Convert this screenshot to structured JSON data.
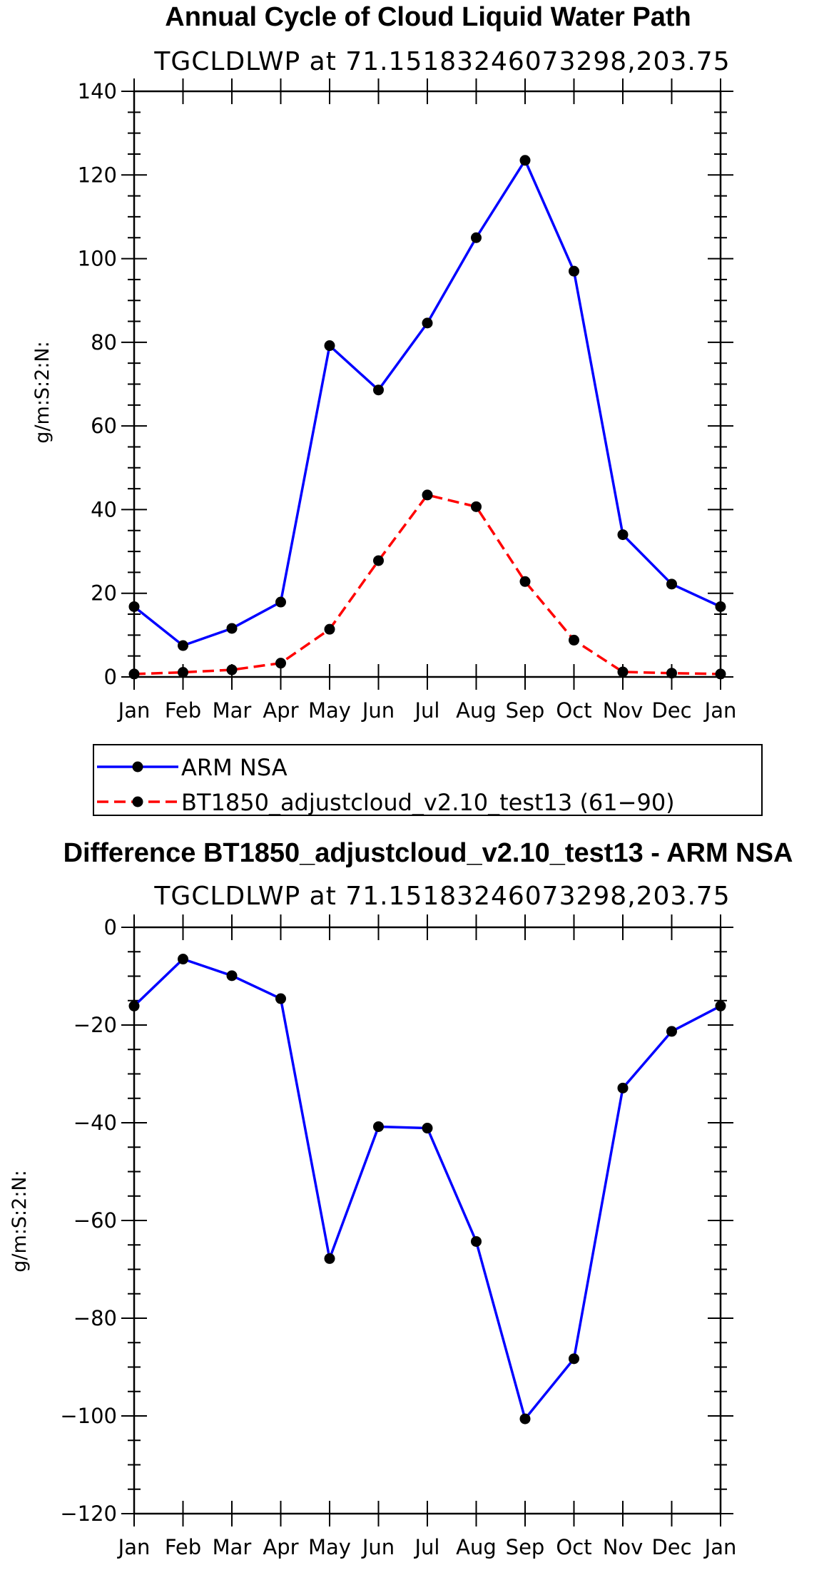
{
  "chart_data": [
    {
      "type": "line",
      "title": "Annual Cycle of Cloud Liquid Water Path",
      "subtitle": "TGCLDLWP at 71.15183246073298,203.75",
      "xlabel": "",
      "ylabel": "g/m:S:2:N:",
      "categories": [
        "Jan",
        "Feb",
        "Mar",
        "Apr",
        "May",
        "Jun",
        "Jul",
        "Aug",
        "Sep",
        "Oct",
        "Nov",
        "Dec",
        "Jan"
      ],
      "ylim": [
        0,
        140
      ],
      "yticks": [
        "0",
        "20",
        "40",
        "60",
        "80",
        "100",
        "120",
        "140"
      ],
      "yticks_values": [
        0,
        20,
        40,
        60,
        80,
        100,
        120,
        140
      ],
      "series": [
        {
          "name": "ARM NSA",
          "color": "#0000ff",
          "dash": "solid",
          "values": [
            16.8,
            7.5,
            11.6,
            17.9,
            79.2,
            68.6,
            84.6,
            105.0,
            123.5,
            97.0,
            34.0,
            22.2,
            16.8
          ]
        },
        {
          "name": "BT1850_adjustcloud_v2.10_test13 (61−90)",
          "color": "#ff0000",
          "dash": "dashed",
          "values": [
            0.7,
            1.1,
            1.7,
            3.3,
            11.4,
            27.8,
            43.5,
            40.7,
            22.8,
            8.8,
            1.2,
            0.9,
            0.7
          ]
        }
      ],
      "legend": "bottom"
    },
    {
      "type": "line",
      "title": "Difference BT1850_adjustcloud_v2.10_test13 - ARM NSA",
      "subtitle": "TGCLDLWP at 71.15183246073298,203.75",
      "xlabel": "",
      "ylabel": "g/m:S:2:N:",
      "categories": [
        "Jan",
        "Feb",
        "Mar",
        "Apr",
        "May",
        "Jun",
        "Jul",
        "Aug",
        "Sep",
        "Oct",
        "Nov",
        "Dec",
        "Jan"
      ],
      "ylim": [
        -120,
        0
      ],
      "yticks": [
        "0",
        "−20",
        "−40",
        "−60",
        "−80",
        "−100",
        "−120"
      ],
      "yticks_values": [
        0,
        -20,
        -40,
        -60,
        -80,
        -100,
        -120
      ],
      "series": [
        {
          "name": "Difference",
          "color": "#0000ff",
          "dash": "solid",
          "values": [
            -16.1,
            -6.5,
            -9.9,
            -14.6,
            -67.8,
            -40.8,
            -41.1,
            -64.3,
            -100.6,
            -88.3,
            -32.9,
            -21.3,
            -16.1
          ]
        }
      ]
    }
  ]
}
